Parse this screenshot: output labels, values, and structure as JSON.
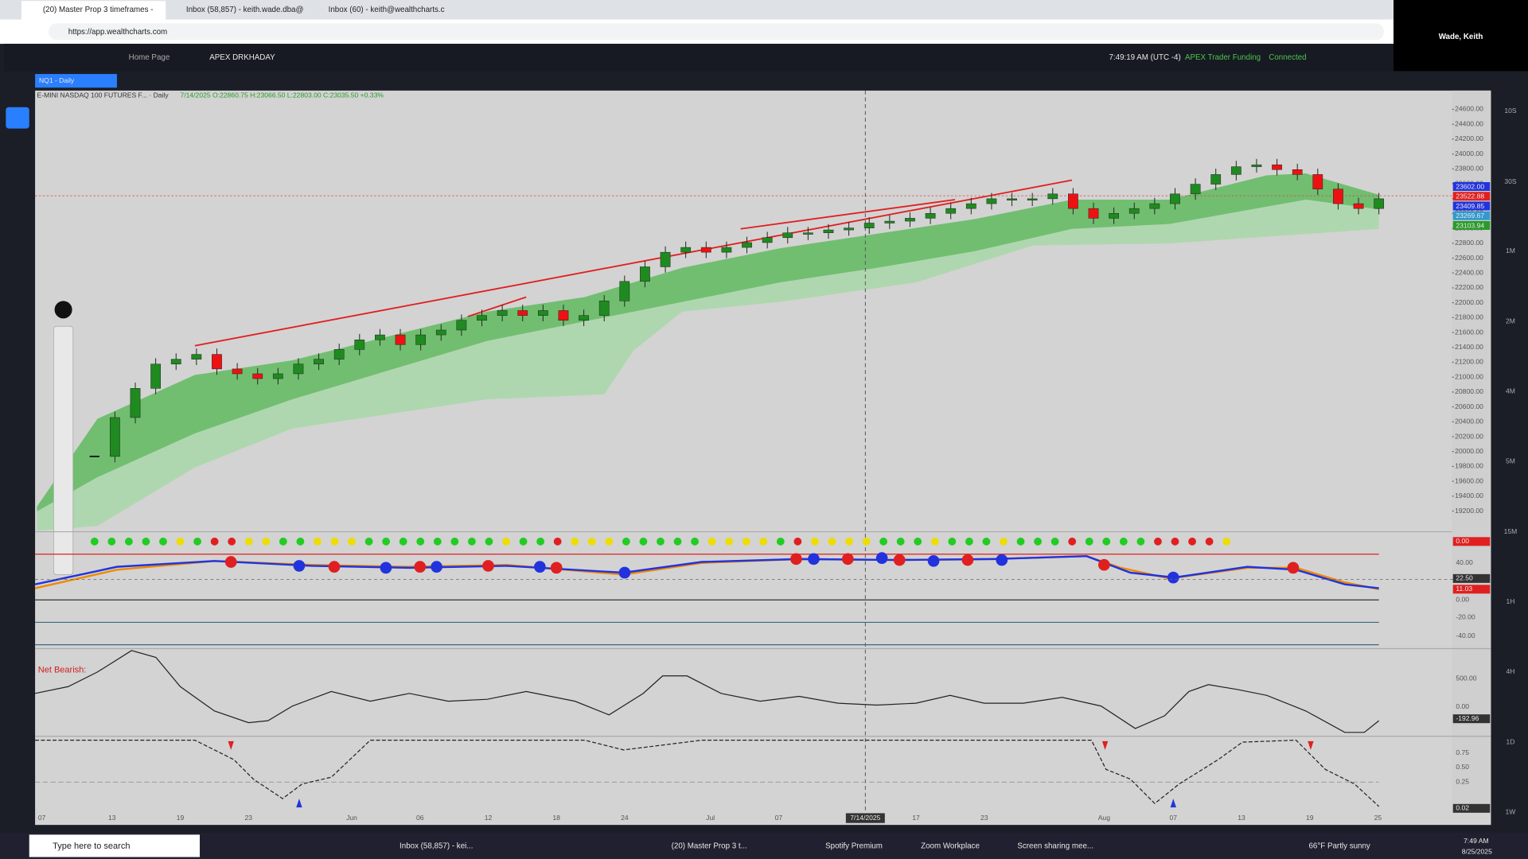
{
  "browser": {
    "tabs": [
      "(20) Master Prop 3 timeframes -",
      "Inbox (58,857) - keith.wade.dba@",
      "Inbox (60) - keith@wealthcharts.c"
    ],
    "url": "https://app.wealthcharts.com",
    "profile": "Wade, Keith"
  },
  "app": {
    "tabs": [
      "Home Page",
      "APEX DRKHADAY"
    ],
    "clock": "7:49:19 AM  (UTC -4)",
    "account": "APEX Trader Funding",
    "status": "Connected"
  },
  "chart_data": {
    "type": "candlestick",
    "symbol": "NQ1 - Daily",
    "legend": "E-MINI NASDAQ 100 FUTURES F... · Daily",
    "ohlc": "7/14/2025 O:22860.75 H:23066.50 L:22803.00 C:23035.50 +0.33%",
    "values": [
      19934,
      20457,
      20849,
      21176,
      21241,
      21306,
      21110,
      21045,
      20980,
      21045,
      21176,
      21241,
      21372,
      21502,
      21568,
      21437,
      21568,
      21633,
      21764,
      21829,
      21895,
      21829,
      21895,
      21764,
      21829,
      22025,
      22287,
      22483,
      22679,
      22744,
      22679,
      22744,
      22809,
      22875,
      22940,
      22940,
      22979,
      23005,
      23071,
      23097,
      23136,
      23202,
      23267,
      23332,
      23398,
      23398,
      23398,
      23463,
      23267,
      23136,
      23202,
      23267,
      23332,
      23463,
      23594,
      23724,
      23829,
      23855,
      23790,
      23724,
      23528,
      23332,
      23267,
      23398
    ],
    "ylim": [
      24800,
      19000
    ],
    "yticks": [
      {
        "value": 24600,
        "label": "24600.00"
      },
      {
        "value": 24400,
        "label": "24400.00"
      },
      {
        "value": 24200,
        "label": "24200.00"
      },
      {
        "value": 24000,
        "label": "24000.00"
      },
      {
        "value": 23800,
        "label": "23800.00"
      },
      {
        "value": 23600,
        "label": "23600.00"
      },
      {
        "value": 23400,
        "label": "23400.00"
      },
      {
        "value": 23200,
        "label": "23200.00"
      },
      {
        "value": 23000,
        "label": "23000.00"
      },
      {
        "value": 22800,
        "label": "22800.00"
      },
      {
        "value": 22600,
        "label": "22600.00"
      },
      {
        "value": 22400,
        "label": "22400.00"
      },
      {
        "value": 22200,
        "label": "22200.00"
      },
      {
        "value": 22000,
        "label": "22000.00"
      },
      {
        "value": 21800,
        "label": "21800.00"
      },
      {
        "value": 21600,
        "label": "21600.00"
      },
      {
        "value": 21400,
        "label": "21400.00"
      },
      {
        "value": 21200,
        "label": "21200.00"
      },
      {
        "value": 21000,
        "label": "21000.00"
      },
      {
        "value": 20800,
        "label": "20800.00"
      },
      {
        "value": 20600,
        "label": "20600.00"
      },
      {
        "value": 20400,
        "label": "20400.00"
      },
      {
        "value": 20200,
        "label": "20200.00"
      },
      {
        "value": 20000,
        "label": "20000.00"
      },
      {
        "value": 19800,
        "label": "19800.00"
      },
      {
        "value": 19600,
        "label": "19600.00"
      },
      {
        "value": 19400,
        "label": "19400.00"
      },
      {
        "value": 19200,
        "label": "19200.00"
      }
    ],
    "price_labels": [
      "23602.00",
      "23522.88",
      "23409.85",
      "23269.67",
      "23103.94"
    ],
    "x_labels": [
      "07",
      "13",
      "19",
      "23",
      "Jun",
      "06",
      "12",
      "18",
      "24",
      "Jul",
      "07",
      "7/14/2025",
      "17",
      "23",
      "Aug",
      "07",
      "13",
      "19",
      "25"
    ],
    "timeframes": [
      "10S",
      "30S",
      "1M",
      "2M",
      "4M",
      "5M",
      "15M",
      "1H",
      "4H",
      "1D",
      "1W"
    ],
    "osc_labels": [
      "0.00",
      "40.00",
      "22.50",
      "11.03",
      "0.00",
      "-20.00",
      "-40.00"
    ],
    "pane3_note": "Net Bearish:",
    "pane3_labels": [
      "500.00",
      "0.00",
      "-192.96"
    ],
    "pane4_labels": [
      "0.75",
      "0.50",
      "0.25",
      "0.02"
    ]
  },
  "taskbar": {
    "search": "Type here to search",
    "apps": [
      "Inbox (58,857) - kei...",
      "(20) Master Prop 3 t...",
      "Spotify Premium",
      "Zoom Workplace",
      "Screen sharing mee..."
    ],
    "weather": "66°F  Partly sunny",
    "time": "7:49 AM",
    "date": "8/25/2025"
  }
}
